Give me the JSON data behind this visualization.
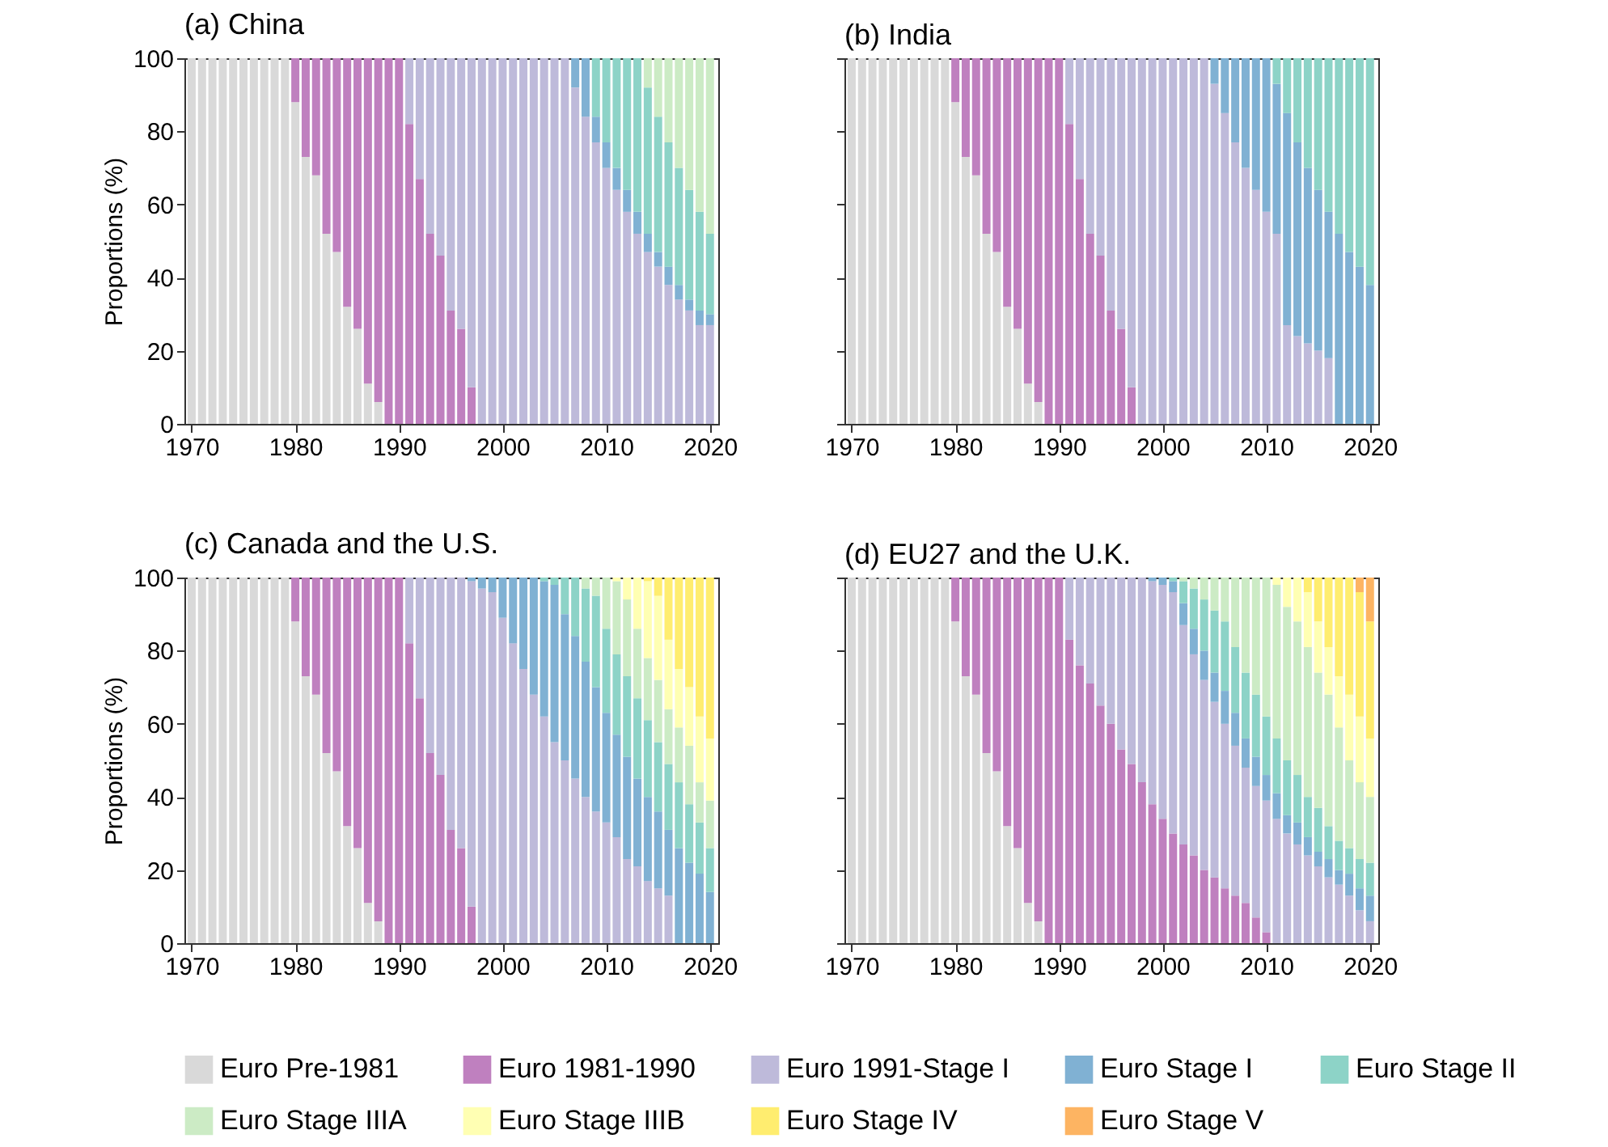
{
  "chart_data": [
    {
      "type": "bar",
      "title": "(a) China",
      "ylabel": "Proportions (%)",
      "stacked": true,
      "legend": "bottom",
      "xlim": [
        1969.3,
        2020.8
      ],
      "xticks": [
        1970,
        1980,
        1990,
        2000,
        2010,
        2020
      ],
      "ylim": [
        0,
        100
      ],
      "yticks": [
        0,
        20,
        40,
        60,
        80,
        100
      ],
      "x": [
        1970,
        1971,
        1972,
        1973,
        1974,
        1975,
        1976,
        1977,
        1978,
        1979,
        1980,
        1981,
        1982,
        1983,
        1984,
        1985,
        1986,
        1987,
        1988,
        1989,
        1990,
        1991,
        1992,
        1993,
        1994,
        1995,
        1996,
        1997,
        1998,
        1999,
        2000,
        2001,
        2002,
        2003,
        2004,
        2005,
        2006,
        2007,
        2008,
        2009,
        2010,
        2011,
        2012,
        2013,
        2014,
        2015,
        2016,
        2017,
        2018,
        2019,
        2020
      ],
      "series": [
        {
          "name": "Euro Pre-1981",
          "color": "#d9d9d9",
          "values": [
            100,
            100,
            100,
            100,
            100,
            100,
            100,
            100,
            100,
            100,
            88,
            73,
            68,
            52,
            47,
            32,
            26,
            11,
            6,
            0,
            0,
            0,
            0,
            0,
            0,
            0,
            0,
            0,
            0,
            0,
            0,
            0,
            0,
            0,
            0,
            0,
            0,
            0,
            0,
            0,
            0,
            0,
            0,
            0,
            0,
            0,
            0,
            0,
            0,
            0,
            0
          ]
        },
        {
          "name": "Euro 1981-1990",
          "color": "#bf80bf",
          "values": [
            0,
            0,
            0,
            0,
            0,
            0,
            0,
            0,
            0,
            0,
            12,
            27,
            32,
            48,
            53,
            68,
            74,
            89,
            94,
            100,
            100,
            82,
            67,
            52,
            46,
            31,
            26,
            10,
            0,
            0,
            0,
            0,
            0,
            0,
            0,
            0,
            0,
            0,
            0,
            0,
            0,
            0,
            0,
            0,
            0,
            0,
            0,
            0,
            0,
            0,
            0
          ]
        },
        {
          "name": "Euro 1991-Stage I",
          "color": "#bebada",
          "values": [
            0,
            0,
            0,
            0,
            0,
            0,
            0,
            0,
            0,
            0,
            0,
            0,
            0,
            0,
            0,
            0,
            0,
            0,
            0,
            0,
            0,
            18,
            33,
            48,
            54,
            69,
            74,
            90,
            100,
            100,
            100,
            100,
            100,
            100,
            100,
            100,
            100,
            92,
            84,
            77,
            70,
            64,
            58,
            52,
            47,
            43,
            38,
            34,
            31,
            27,
            27
          ]
        },
        {
          "name": "Euro Stage I",
          "color": "#80b1d3",
          "values": [
            0,
            0,
            0,
            0,
            0,
            0,
            0,
            0,
            0,
            0,
            0,
            0,
            0,
            0,
            0,
            0,
            0,
            0,
            0,
            0,
            0,
            0,
            0,
            0,
            0,
            0,
            0,
            0,
            0,
            0,
            0,
            0,
            0,
            0,
            0,
            0,
            0,
            8,
            16,
            7,
            7,
            6,
            6,
            6,
            5,
            4,
            5,
            4,
            3,
            4,
            3
          ]
        },
        {
          "name": "Euro Stage II",
          "color": "#8dd3c7",
          "values": [
            0,
            0,
            0,
            0,
            0,
            0,
            0,
            0,
            0,
            0,
            0,
            0,
            0,
            0,
            0,
            0,
            0,
            0,
            0,
            0,
            0,
            0,
            0,
            0,
            0,
            0,
            0,
            0,
            0,
            0,
            0,
            0,
            0,
            0,
            0,
            0,
            0,
            0,
            0,
            16,
            23,
            30,
            36,
            42,
            40,
            37,
            34,
            32,
            30,
            27,
            22
          ]
        },
        {
          "name": "Euro Stage IIIA",
          "color": "#ccebc5",
          "values": [
            0,
            0,
            0,
            0,
            0,
            0,
            0,
            0,
            0,
            0,
            0,
            0,
            0,
            0,
            0,
            0,
            0,
            0,
            0,
            0,
            0,
            0,
            0,
            0,
            0,
            0,
            0,
            0,
            0,
            0,
            0,
            0,
            0,
            0,
            0,
            0,
            0,
            0,
            0,
            0,
            0,
            0,
            0,
            0,
            8,
            16,
            23,
            30,
            36,
            42,
            48
          ]
        }
      ]
    },
    {
      "type": "bar",
      "title": "(b) India",
      "stacked": true,
      "legend": "bottom",
      "tick_labels": "x",
      "xlim": [
        1969.3,
        2020.8
      ],
      "xticks": [
        1970,
        1980,
        1990,
        2000,
        2010,
        2020
      ],
      "ylim": [
        0,
        100
      ],
      "yticks": [
        0,
        20,
        40,
        60,
        80,
        100
      ],
      "x": [
        1970,
        1971,
        1972,
        1973,
        1974,
        1975,
        1976,
        1977,
        1978,
        1979,
        1980,
        1981,
        1982,
        1983,
        1984,
        1985,
        1986,
        1987,
        1988,
        1989,
        1990,
        1991,
        1992,
        1993,
        1994,
        1995,
        1996,
        1997,
        1998,
        1999,
        2000,
        2001,
        2002,
        2003,
        2004,
        2005,
        2006,
        2007,
        2008,
        2009,
        2010,
        2011,
        2012,
        2013,
        2014,
        2015,
        2016,
        2017,
        2018,
        2019,
        2020
      ],
      "series": [
        {
          "name": "Euro Pre-1981",
          "color": "#d9d9d9",
          "values": [
            100,
            100,
            100,
            100,
            100,
            100,
            100,
            100,
            100,
            100,
            88,
            73,
            68,
            52,
            47,
            32,
            26,
            11,
            6,
            0,
            0,
            0,
            0,
            0,
            0,
            0,
            0,
            0,
            0,
            0,
            0,
            0,
            0,
            0,
            0,
            0,
            0,
            0,
            0,
            0,
            0,
            0,
            0,
            0,
            0,
            0,
            0,
            0,
            0,
            0,
            0
          ]
        },
        {
          "name": "Euro 1981-1990",
          "color": "#bf80bf",
          "values": [
            0,
            0,
            0,
            0,
            0,
            0,
            0,
            0,
            0,
            0,
            12,
            27,
            32,
            48,
            53,
            68,
            74,
            89,
            94,
            100,
            100,
            82,
            67,
            52,
            46,
            31,
            26,
            10,
            0,
            0,
            0,
            0,
            0,
            0,
            0,
            0,
            0,
            0,
            0,
            0,
            0,
            0,
            0,
            0,
            0,
            0,
            0,
            0,
            0,
            0,
            0
          ]
        },
        {
          "name": "Euro 1991-Stage I",
          "color": "#bebada",
          "values": [
            0,
            0,
            0,
            0,
            0,
            0,
            0,
            0,
            0,
            0,
            0,
            0,
            0,
            0,
            0,
            0,
            0,
            0,
            0,
            0,
            0,
            18,
            33,
            48,
            54,
            69,
            74,
            90,
            100,
            100,
            100,
            100,
            100,
            100,
            100,
            93,
            85,
            77,
            70,
            64,
            58,
            52,
            27,
            24,
            22,
            20,
            18,
            0,
            0,
            0,
            0
          ]
        },
        {
          "name": "Euro Stage I",
          "color": "#80b1d3",
          "values": [
            0,
            0,
            0,
            0,
            0,
            0,
            0,
            0,
            0,
            0,
            0,
            0,
            0,
            0,
            0,
            0,
            0,
            0,
            0,
            0,
            0,
            0,
            0,
            0,
            0,
            0,
            0,
            0,
            0,
            0,
            0,
            0,
            0,
            0,
            0,
            7,
            15,
            23,
            30,
            36,
            42,
            41,
            58,
            53,
            48,
            44,
            40,
            52,
            47,
            43,
            38
          ]
        },
        {
          "name": "Euro Stage II",
          "color": "#8dd3c7",
          "values": [
            0,
            0,
            0,
            0,
            0,
            0,
            0,
            0,
            0,
            0,
            0,
            0,
            0,
            0,
            0,
            0,
            0,
            0,
            0,
            0,
            0,
            0,
            0,
            0,
            0,
            0,
            0,
            0,
            0,
            0,
            0,
            0,
            0,
            0,
            0,
            0,
            0,
            0,
            0,
            0,
            0,
            7,
            15,
            23,
            30,
            36,
            42,
            48,
            53,
            57,
            62
          ]
        }
      ]
    },
    {
      "type": "bar",
      "title": "(c) Canada and the U.S.",
      "ylabel": "Proportions (%)",
      "stacked": true,
      "legend": "bottom",
      "xlim": [
        1969.3,
        2020.8
      ],
      "xticks": [
        1970,
        1980,
        1990,
        2000,
        2010,
        2020
      ],
      "ylim": [
        0,
        100
      ],
      "yticks": [
        0,
        20,
        40,
        60,
        80,
        100
      ],
      "x": [
        1970,
        1971,
        1972,
        1973,
        1974,
        1975,
        1976,
        1977,
        1978,
        1979,
        1980,
        1981,
        1982,
        1983,
        1984,
        1985,
        1986,
        1987,
        1988,
        1989,
        1990,
        1991,
        1992,
        1993,
        1994,
        1995,
        1996,
        1997,
        1998,
        1999,
        2000,
        2001,
        2002,
        2003,
        2004,
        2005,
        2006,
        2007,
        2008,
        2009,
        2010,
        2011,
        2012,
        2013,
        2014,
        2015,
        2016,
        2017,
        2018,
        2019,
        2020
      ],
      "series": [
        {
          "name": "Euro Pre-1981",
          "color": "#d9d9d9",
          "values": [
            100,
            100,
            100,
            100,
            100,
            100,
            100,
            100,
            100,
            100,
            88,
            73,
            68,
            52,
            47,
            32,
            26,
            11,
            6,
            0,
            0,
            0,
            0,
            0,
            0,
            0,
            0,
            0,
            0,
            0,
            0,
            0,
            0,
            0,
            0,
            0,
            0,
            0,
            0,
            0,
            0,
            0,
            0,
            0,
            0,
            0,
            0,
            0,
            0,
            0,
            0
          ]
        },
        {
          "name": "Euro 1981-1990",
          "color": "#bf80bf",
          "values": [
            0,
            0,
            0,
            0,
            0,
            0,
            0,
            0,
            0,
            0,
            12,
            27,
            32,
            48,
            53,
            68,
            74,
            89,
            94,
            100,
            100,
            82,
            67,
            52,
            46,
            31,
            26,
            10,
            0,
            0,
            0,
            0,
            0,
            0,
            0,
            0,
            0,
            0,
            0,
            0,
            0,
            0,
            0,
            0,
            0,
            0,
            0,
            0,
            0,
            0,
            0
          ]
        },
        {
          "name": "Euro 1991-Stage I",
          "color": "#bebada",
          "values": [
            0,
            0,
            0,
            0,
            0,
            0,
            0,
            0,
            0,
            0,
            0,
            0,
            0,
            0,
            0,
            0,
            0,
            0,
            0,
            0,
            0,
            18,
            33,
            48,
            54,
            69,
            74,
            89,
            97,
            96,
            89,
            82,
            75,
            68,
            62,
            55,
            50,
            45,
            40,
            36,
            33,
            29,
            23,
            21,
            17,
            15,
            13,
            0,
            0,
            0,
            0
          ]
        },
        {
          "name": "Euro Stage I",
          "color": "#80b1d3",
          "values": [
            0,
            0,
            0,
            0,
            0,
            0,
            0,
            0,
            0,
            0,
            0,
            0,
            0,
            0,
            0,
            0,
            0,
            0,
            0,
            0,
            0,
            0,
            0,
            0,
            0,
            0,
            0,
            1,
            3,
            4,
            11,
            18,
            25,
            32,
            37,
            43,
            40,
            39,
            37,
            34,
            30,
            28,
            28,
            24,
            23,
            21,
            18,
            26,
            22,
            19,
            14
          ]
        },
        {
          "name": "Euro Stage II",
          "color": "#8dd3c7",
          "values": [
            0,
            0,
            0,
            0,
            0,
            0,
            0,
            0,
            0,
            0,
            0,
            0,
            0,
            0,
            0,
            0,
            0,
            0,
            0,
            0,
            0,
            0,
            0,
            0,
            0,
            0,
            0,
            0,
            0,
            0,
            0,
            0,
            0,
            0,
            1,
            2,
            10,
            16,
            20,
            25,
            23,
            22,
            22,
            22,
            21,
            19,
            18,
            18,
            16,
            14,
            12
          ]
        },
        {
          "name": "Euro Stage IIIA",
          "color": "#ccebc5",
          "values": [
            0,
            0,
            0,
            0,
            0,
            0,
            0,
            0,
            0,
            0,
            0,
            0,
            0,
            0,
            0,
            0,
            0,
            0,
            0,
            0,
            0,
            0,
            0,
            0,
            0,
            0,
            0,
            0,
            0,
            0,
            0,
            0,
            0,
            0,
            0,
            0,
            0,
            0,
            3,
            5,
            14,
            20,
            21,
            19,
            17,
            17,
            15,
            15,
            16,
            11,
            13
          ]
        },
        {
          "name": "Euro Stage IIIB",
          "color": "#ffffb3",
          "values": [
            0,
            0,
            0,
            0,
            0,
            0,
            0,
            0,
            0,
            0,
            0,
            0,
            0,
            0,
            0,
            0,
            0,
            0,
            0,
            0,
            0,
            0,
            0,
            0,
            0,
            0,
            0,
            0,
            0,
            0,
            0,
            0,
            0,
            0,
            0,
            0,
            0,
            0,
            0,
            0,
            0,
            1,
            6,
            14,
            21,
            23,
            19,
            16,
            16,
            18,
            17
          ]
        },
        {
          "name": "Euro Stage IV",
          "color": "#ffed6f",
          "values": [
            0,
            0,
            0,
            0,
            0,
            0,
            0,
            0,
            0,
            0,
            0,
            0,
            0,
            0,
            0,
            0,
            0,
            0,
            0,
            0,
            0,
            0,
            0,
            0,
            0,
            0,
            0,
            0,
            0,
            0,
            0,
            0,
            0,
            0,
            0,
            0,
            0,
            0,
            0,
            0,
            0,
            0,
            0,
            0,
            1,
            5,
            17,
            25,
            30,
            38,
            44
          ]
        }
      ]
    },
    {
      "type": "bar",
      "title": "(d) EU27 and the U.K.",
      "stacked": true,
      "legend": "bottom",
      "tick_labels": "x",
      "xlim": [
        1969.3,
        2020.8
      ],
      "xticks": [
        1970,
        1980,
        1990,
        2000,
        2010,
        2020
      ],
      "ylim": [
        0,
        100
      ],
      "yticks": [
        0,
        20,
        40,
        60,
        80,
        100
      ],
      "x": [
        1970,
        1971,
        1972,
        1973,
        1974,
        1975,
        1976,
        1977,
        1978,
        1979,
        1980,
        1981,
        1982,
        1983,
        1984,
        1985,
        1986,
        1987,
        1988,
        1989,
        1990,
        1991,
        1992,
        1993,
        1994,
        1995,
        1996,
        1997,
        1998,
        1999,
        2000,
        2001,
        2002,
        2003,
        2004,
        2005,
        2006,
        2007,
        2008,
        2009,
        2010,
        2011,
        2012,
        2013,
        2014,
        2015,
        2016,
        2017,
        2018,
        2019,
        2020
      ],
      "series": [
        {
          "name": "Euro Pre-1981",
          "color": "#d9d9d9",
          "values": [
            100,
            100,
            100,
            100,
            100,
            100,
            100,
            100,
            100,
            100,
            88,
            73,
            68,
            52,
            47,
            32,
            26,
            11,
            6,
            0,
            0,
            0,
            0,
            0,
            0,
            0,
            0,
            0,
            0,
            0,
            0,
            0,
            0,
            0,
            0,
            0,
            0,
            0,
            0,
            0,
            0,
            0,
            0,
            0,
            0,
            0,
            0,
            0,
            0,
            0,
            0
          ]
        },
        {
          "name": "Euro 1981-1990",
          "color": "#bf80bf",
          "values": [
            0,
            0,
            0,
            0,
            0,
            0,
            0,
            0,
            0,
            0,
            12,
            27,
            32,
            48,
            53,
            68,
            74,
            89,
            94,
            100,
            100,
            83,
            76,
            71,
            65,
            60,
            53,
            49,
            44,
            38,
            34,
            30,
            27,
            24,
            20,
            18,
            15,
            13,
            11,
            7,
            3,
            0,
            0,
            0,
            0,
            0,
            0,
            0,
            0,
            0,
            0
          ]
        },
        {
          "name": "Euro 1991-Stage I",
          "color": "#bebada",
          "values": [
            0,
            0,
            0,
            0,
            0,
            0,
            0,
            0,
            0,
            0,
            0,
            0,
            0,
            0,
            0,
            0,
            0,
            0,
            0,
            0,
            0,
            17,
            24,
            29,
            35,
            40,
            47,
            51,
            56,
            61,
            64,
            66,
            60,
            55,
            52,
            48,
            45,
            41,
            37,
            36,
            36,
            34,
            30,
            27,
            24,
            21,
            18,
            16,
            13,
            9,
            6
          ]
        },
        {
          "name": "Euro Stage I",
          "color": "#80b1d3",
          "values": [
            0,
            0,
            0,
            0,
            0,
            0,
            0,
            0,
            0,
            0,
            0,
            0,
            0,
            0,
            0,
            0,
            0,
            0,
            0,
            0,
            0,
            0,
            0,
            0,
            0,
            0,
            0,
            0,
            0,
            1,
            2,
            3,
            6,
            7,
            8,
            8,
            9,
            9,
            8,
            8,
            7,
            7,
            5,
            6,
            5,
            4,
            5,
            4,
            6,
            6,
            7
          ]
        },
        {
          "name": "Euro Stage II",
          "color": "#8dd3c7",
          "values": [
            0,
            0,
            0,
            0,
            0,
            0,
            0,
            0,
            0,
            0,
            0,
            0,
            0,
            0,
            0,
            0,
            0,
            0,
            0,
            0,
            0,
            0,
            0,
            0,
            0,
            0,
            0,
            0,
            0,
            0,
            0,
            1,
            6,
            11,
            14,
            17,
            19,
            18,
            18,
            17,
            16,
            15,
            15,
            13,
            11,
            12,
            9,
            8,
            7,
            8,
            9
          ]
        },
        {
          "name": "Euro Stage IIIA",
          "color": "#ccebc5",
          "values": [
            0,
            0,
            0,
            0,
            0,
            0,
            0,
            0,
            0,
            0,
            0,
            0,
            0,
            0,
            0,
            0,
            0,
            0,
            0,
            0,
            0,
            0,
            0,
            0,
            0,
            0,
            0,
            0,
            0,
            0,
            0,
            0,
            1,
            3,
            6,
            9,
            12,
            19,
            26,
            32,
            38,
            42,
            42,
            42,
            41,
            37,
            36,
            31,
            24,
            21,
            18
          ]
        },
        {
          "name": "Euro Stage IIIB",
          "color": "#ffffb3",
          "values": [
            0,
            0,
            0,
            0,
            0,
            0,
            0,
            0,
            0,
            0,
            0,
            0,
            0,
            0,
            0,
            0,
            0,
            0,
            0,
            0,
            0,
            0,
            0,
            0,
            0,
            0,
            0,
            0,
            0,
            0,
            0,
            0,
            0,
            0,
            0,
            0,
            0,
            0,
            0,
            0,
            0,
            2,
            8,
            12,
            15,
            14,
            13,
            14,
            18,
            18,
            16
          ]
        },
        {
          "name": "Euro Stage IV",
          "color": "#ffed6f",
          "values": [
            0,
            0,
            0,
            0,
            0,
            0,
            0,
            0,
            0,
            0,
            0,
            0,
            0,
            0,
            0,
            0,
            0,
            0,
            0,
            0,
            0,
            0,
            0,
            0,
            0,
            0,
            0,
            0,
            0,
            0,
            0,
            0,
            0,
            0,
            0,
            0,
            0,
            0,
            0,
            0,
            0,
            0,
            0,
            0,
            4,
            12,
            19,
            27,
            32,
            34,
            32
          ]
        },
        {
          "name": "Euro Stage V",
          "color": "#fdb462",
          "values": [
            0,
            0,
            0,
            0,
            0,
            0,
            0,
            0,
            0,
            0,
            0,
            0,
            0,
            0,
            0,
            0,
            0,
            0,
            0,
            0,
            0,
            0,
            0,
            0,
            0,
            0,
            0,
            0,
            0,
            0,
            0,
            0,
            0,
            0,
            0,
            0,
            0,
            0,
            0,
            0,
            0,
            0,
            0,
            0,
            0,
            0,
            0,
            0,
            0,
            4,
            12
          ]
        }
      ]
    }
  ]
}
